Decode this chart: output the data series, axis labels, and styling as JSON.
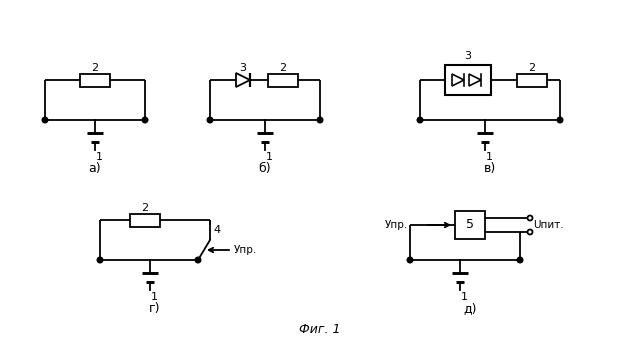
{
  "bg_color": "#ffffff",
  "line_color": "#000000",
  "fig_caption": "Фиг. 1",
  "labels": {
    "a": "а)",
    "b": "б)",
    "c": "в)",
    "d": "г)",
    "e": "д)"
  }
}
